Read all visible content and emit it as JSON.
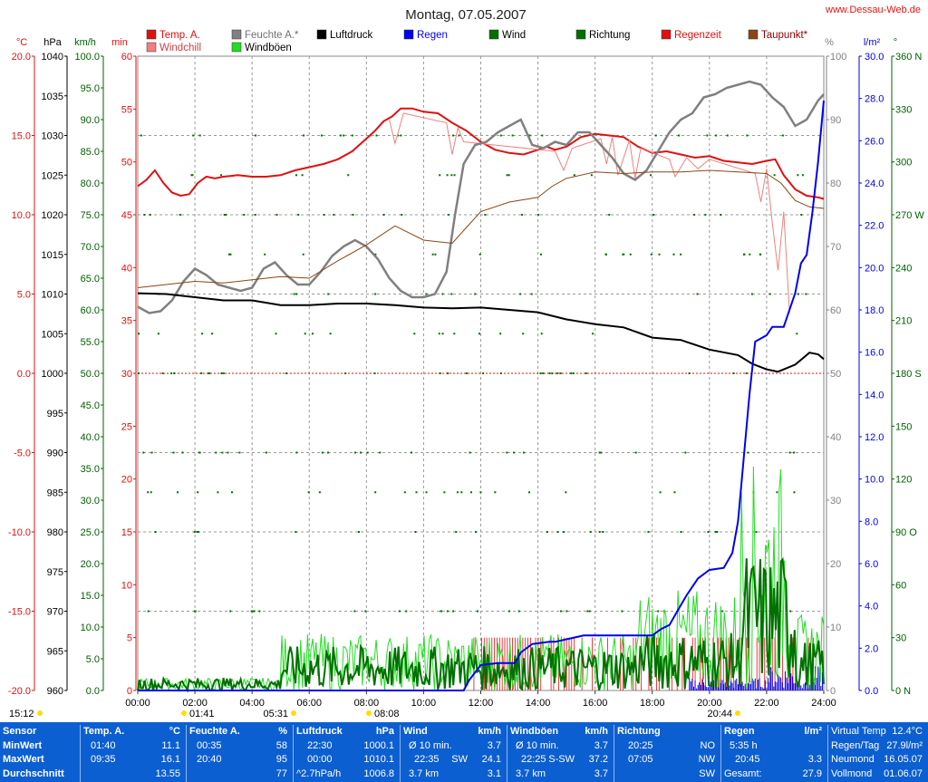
{
  "header": {
    "title": "Montag, 07.05.2007",
    "site": "www.Dessau-Web.de"
  },
  "legend": [
    {
      "label": "Temp. A.",
      "color": "#e01010"
    },
    {
      "label": "Windchill",
      "color": "#f08080"
    },
    {
      "label": "Feuchte A.*",
      "color": "#808080"
    },
    {
      "label": "Windböen",
      "color": "#22dd22"
    },
    {
      "label": "Luftdruck",
      "color": "#000000"
    },
    {
      "label": "Regen",
      "color": "#0000ee"
    },
    {
      "label": "Wind",
      "color": "#007000"
    },
    {
      "label": "Richtung",
      "color": "#007000"
    },
    {
      "label": "Regenzeit",
      "color": "#e01010"
    },
    {
      "label": "Taupunkt*",
      "color": "#8b4513"
    }
  ],
  "chart_data": {
    "type": "line",
    "x_range_h": [
      0,
      24
    ],
    "x_ticks": [
      "00:00",
      "02:00",
      "04:00",
      "06:00",
      "08:00",
      "10:00",
      "12:00",
      "14:00",
      "16:00",
      "18:00",
      "20:00",
      "22:00",
      "24:00"
    ],
    "axes": {
      "temp": {
        "unit": "°C",
        "range": [
          -20,
          20
        ],
        "ticks": [
          "20.0",
          "15.0",
          "10.0",
          "5.0",
          "0.0",
          "-5.0",
          "-10.0",
          "-15.0",
          "-20.0"
        ],
        "color": "#e01010"
      },
      "pressure": {
        "unit": "hPa",
        "range": [
          960,
          1040
        ],
        "ticks": [
          "1040",
          "1035",
          "1030",
          "1025",
          "1020",
          "1015",
          "1010",
          "1005",
          "1000",
          "995",
          "990",
          "985",
          "980",
          "975",
          "970",
          "965",
          "960"
        ],
        "color": "#000000"
      },
      "wind": {
        "unit": "km/h",
        "range": [
          0,
          100
        ],
        "ticks": [
          "100.0",
          "95.0",
          "90.0",
          "85.0",
          "80.0",
          "75.0",
          "70.0",
          "65.0",
          "60.0",
          "55.0",
          "50.0",
          "45.0",
          "40.0",
          "35.0",
          "30.0",
          "25.0",
          "20.0",
          "15.0",
          "10.0",
          "5.0",
          "0.0"
        ],
        "color": "#006000"
      },
      "minutes": {
        "unit": "min",
        "range": [
          0,
          60
        ],
        "ticks": [
          "60",
          "55",
          "50",
          "45",
          "40",
          "35",
          "30",
          "25",
          "20",
          "15",
          "10",
          "5",
          "0"
        ],
        "color": "#e01010"
      },
      "humidity": {
        "unit": "%",
        "range": [
          0,
          100
        ],
        "ticks": [
          "100",
          "90",
          "80",
          "70",
          "60",
          "50",
          "40",
          "30",
          "20",
          "10",
          "0"
        ],
        "color": "#808080"
      },
      "rain": {
        "unit": "l/m²",
        "range": [
          0,
          30
        ],
        "ticks": [
          "30.0",
          "28.0",
          "26.0",
          "24.0",
          "22.0",
          "20.0",
          "18.0",
          "16.0",
          "14.0",
          "12.0",
          "10.0",
          "8.0",
          "6.0",
          "4.0",
          "2.0",
          "0.0"
        ],
        "color": "#0000ee"
      },
      "direction": {
        "unit": "°",
        "range": [
          0,
          360
        ],
        "ticks": [
          "360 N",
          "330",
          "300",
          "270 W",
          "240",
          "210",
          "180 S",
          "150",
          "120",
          "90 O",
          "60",
          "30",
          "0 N"
        ],
        "color": "#006000"
      }
    },
    "series": [
      {
        "name": "Temp. A.",
        "axis": "temp",
        "color": "#e01010",
        "x": [
          0,
          0.3,
          0.6,
          0.9,
          1.2,
          1.5,
          1.8,
          2.1,
          2.4,
          2.7,
          3.0,
          3.5,
          4.0,
          4.5,
          5.0,
          5.5,
          6.0,
          6.5,
          7.0,
          7.5,
          8.0,
          8.3,
          8.6,
          8.9,
          9.2,
          9.6,
          10.0,
          10.5,
          11.0,
          11.5,
          12.0,
          12.5,
          13.0,
          13.5,
          14.0,
          14.3,
          14.6,
          15.0,
          15.5,
          16.0,
          16.5,
          17.0,
          17.5,
          18.0,
          18.5,
          19.0,
          19.5,
          20.0,
          20.5,
          21.0,
          21.5,
          22.0,
          22.3,
          22.6,
          23.0,
          23.4,
          23.8,
          24.0
        ],
        "values": [
          11.8,
          12.2,
          12.8,
          12.0,
          11.4,
          11.2,
          11.3,
          12.0,
          12.4,
          12.3,
          12.4,
          12.5,
          12.4,
          12.4,
          12.5,
          12.8,
          13.0,
          13.2,
          13.5,
          14.0,
          14.8,
          15.3,
          15.9,
          16.2,
          16.7,
          16.7,
          16.5,
          16.4,
          15.8,
          15.3,
          14.6,
          14.1,
          13.9,
          13.8,
          14.1,
          14.3,
          14.1,
          14.3,
          14.9,
          15.1,
          15.0,
          14.9,
          14.3,
          13.9,
          14.0,
          13.8,
          13.6,
          13.7,
          13.4,
          13.3,
          13.2,
          13.4,
          13.5,
          12.5,
          11.6,
          11.2,
          11.1,
          11.0
        ]
      },
      {
        "name": "Windchill",
        "axis": "temp",
        "color": "#f08080",
        "x": [
          8.8,
          9.0,
          9.3,
          10.8,
          11.0,
          11.2,
          11.4,
          14.6,
          14.9,
          15.2,
          16.2,
          16.4,
          16.6,
          16.8,
          17.2,
          17.4,
          17.6,
          18.6,
          18.8,
          19.2,
          19.6,
          20.0,
          21.6,
          21.8,
          22.0,
          22.2,
          22.4,
          22.6,
          22.8
        ],
        "values": [
          16.0,
          14.5,
          16.4,
          15.8,
          13.8,
          15.5,
          14.6,
          14.0,
          12.8,
          14.2,
          14.8,
          13.2,
          14.9,
          12.5,
          14.7,
          12.3,
          14.2,
          13.5,
          12.4,
          13.6,
          12.9,
          13.5,
          12.6,
          10.8,
          12.9,
          9.5,
          6.5,
          10.2,
          3.8
        ]
      },
      {
        "name": "Feuchte A.*",
        "axis": "humidity",
        "color": "#808080",
        "x": [
          0,
          0.4,
          0.8,
          1.2,
          1.6,
          2.0,
          2.4,
          2.8,
          3.2,
          3.6,
          4.0,
          4.4,
          4.8,
          5.2,
          5.6,
          6.0,
          6.4,
          6.8,
          7.2,
          7.6,
          8.0,
          8.4,
          8.8,
          9.2,
          9.6,
          10.0,
          10.4,
          10.8,
          11.1,
          11.4,
          11.8,
          12.2,
          12.6,
          13.0,
          13.4,
          13.8,
          14.2,
          14.6,
          15.0,
          15.4,
          15.8,
          16.2,
          16.6,
          17.0,
          17.4,
          17.8,
          18.2,
          18.6,
          19.0,
          19.4,
          19.8,
          20.2,
          20.6,
          21.0,
          21.4,
          21.8,
          22.2,
          22.6,
          23.0,
          23.4,
          23.8,
          24.0
        ],
        "values": [
          60.5,
          59.5,
          59.8,
          61.5,
          64.5,
          66.5,
          65.5,
          64.0,
          63.5,
          63.0,
          63.5,
          66.5,
          67.5,
          65.5,
          64.0,
          64.0,
          66.0,
          68.5,
          70.0,
          71.0,
          70.0,
          68.0,
          65.0,
          63.0,
          62.0,
          62.0,
          62.5,
          66.0,
          75.0,
          83.0,
          86.0,
          86.5,
          88.0,
          89.0,
          90.0,
          86.0,
          85.5,
          86.5,
          86.0,
          88.0,
          88.0,
          86.0,
          84.0,
          81.5,
          80.5,
          82.0,
          85.0,
          88.0,
          90.0,
          91.0,
          93.5,
          94.0,
          95.0,
          95.5,
          96.0,
          95.5,
          93.5,
          92.0,
          89.0,
          90.0,
          93.0,
          94.0
        ]
      },
      {
        "name": "Taupunkt*",
        "axis": "temp",
        "color": "#8b4513",
        "x": [
          0,
          1.0,
          2.0,
          3.0,
          4.0,
          5.0,
          6.0,
          7.0,
          8.0,
          9.0,
          10.0,
          11.0,
          11.5,
          12.0,
          13.0,
          14.0,
          14.5,
          15.0,
          16.0,
          17.0,
          18.0,
          19.0,
          20.0,
          21.0,
          22.0,
          22.5,
          23.0,
          23.5,
          24.0
        ],
        "values": [
          5.4,
          5.6,
          5.8,
          5.7,
          5.9,
          6.1,
          6.0,
          7.1,
          8.1,
          9.3,
          8.4,
          8.2,
          9.2,
          10.2,
          10.8,
          11.1,
          11.8,
          12.3,
          12.7,
          12.6,
          12.7,
          12.7,
          12.8,
          12.7,
          12.6,
          12.0,
          10.9,
          10.5,
          10.4
        ]
      },
      {
        "name": "Luftdruck",
        "axis": "pressure",
        "color": "#000000",
        "x": [
          0,
          1.0,
          2.0,
          3.0,
          4.0,
          5.0,
          6.0,
          7.0,
          8.0,
          9.0,
          10.0,
          11.0,
          12.0,
          13.0,
          14.0,
          15.0,
          16.0,
          17.0,
          18.0,
          19.0,
          20.0,
          21.0,
          21.5,
          22.0,
          22.4,
          23.0,
          23.5,
          23.8,
          24.0
        ],
        "values": [
          1010.1,
          1010.0,
          1009.6,
          1009.2,
          1009.2,
          1008.6,
          1008.6,
          1008.8,
          1008.8,
          1008.6,
          1008.3,
          1008.2,
          1008.3,
          1008.0,
          1007.7,
          1006.8,
          1006.2,
          1005.8,
          1004.5,
          1004.2,
          1003.0,
          1002.3,
          1001.2,
          1000.5,
          1000.2,
          1001.1,
          1002.6,
          1002.4,
          1001.8
        ]
      },
      {
        "name": "Regen",
        "axis": "rain",
        "color": "#0000ee",
        "x": [
          0,
          11.4,
          11.6,
          12.0,
          12.6,
          13.2,
          13.4,
          13.8,
          14.4,
          14.6,
          15.6,
          16.6,
          17.6,
          18.0,
          18.3,
          18.6,
          18.9,
          19.2,
          19.6,
          20.0,
          20.5,
          20.8,
          21.0,
          21.2,
          21.4,
          21.6,
          22.0,
          22.2,
          22.3,
          22.6,
          23.0,
          23.2,
          23.4,
          23.6,
          23.8,
          24.0
        ],
        "values": [
          0,
          0,
          0.5,
          1.2,
          1.3,
          1.3,
          1.8,
          2.2,
          2.3,
          2.3,
          2.6,
          2.6,
          2.6,
          2.6,
          2.9,
          3.1,
          3.8,
          4.5,
          5.3,
          5.7,
          5.8,
          6.5,
          8.0,
          11.0,
          14.0,
          16.5,
          16.8,
          17.2,
          17.2,
          17.2,
          18.8,
          20.2,
          20.6,
          22.6,
          25.0,
          27.9
        ]
      }
    ]
  },
  "footer_times": [
    {
      "label": "15:12"
    },
    {
      "label": "01:41"
    },
    {
      "label": "05:31"
    },
    {
      "label": "08:08"
    },
    {
      "label": "20:44"
    }
  ],
  "stats": {
    "sensor": {
      "title": "Sensor",
      "rows": [
        "MinWert",
        "MaxWert",
        "Durchschnitt"
      ]
    },
    "temp": {
      "title": "Temp. A.",
      "unit": "°C",
      "rows": [
        {
          "t": "01:40",
          "v": "11.1"
        },
        {
          "t": "09:35",
          "v": "16.1"
        },
        {
          "t": "",
          "v": "13.55"
        }
      ]
    },
    "hum": {
      "title": "Feuchte A.",
      "unit": "%",
      "rows": [
        {
          "t": "00:35",
          "v": "58"
        },
        {
          "t": "20:40",
          "v": "95"
        },
        {
          "t": "",
          "v": "77"
        }
      ]
    },
    "press": {
      "title": "Luftdruck",
      "unit": "hPa",
      "rows": [
        {
          "t": "22:30",
          "v": "1000.1"
        },
        {
          "t": "00:00",
          "v": "1010.1"
        },
        {
          "t": "^2.7hPa/h",
          "v": "1006.8"
        }
      ]
    },
    "wind": {
      "title": "Wind",
      "unit": "km/h",
      "rows": [
        {
          "t": "Ø 10 min.",
          "m": "",
          "v": "3.7"
        },
        {
          "t": "22:35",
          "m": "SW",
          "v": "24.1"
        },
        {
          "t": "3.7 km",
          "m": "",
          "v": "3.1"
        }
      ]
    },
    "gust": {
      "title": "Windböen",
      "unit": "km/h",
      "rows": [
        {
          "t": "Ø 10 min.",
          "m": "",
          "v": "3.7"
        },
        {
          "t": "22:25",
          "m": "S-SW",
          "v": "37.2"
        },
        {
          "t": "3.7 km",
          "m": "",
          "v": "3.7"
        }
      ]
    },
    "dir": {
      "title": "Richtung",
      "unit": "",
      "rows": [
        {
          "t": "20:25",
          "v": "NO"
        },
        {
          "t": "07:05",
          "v": "NW"
        },
        {
          "t": "",
          "v": "SW"
        }
      ]
    },
    "rain": {
      "title": "Regen",
      "unit": "l/m²",
      "rows": [
        {
          "t": "5:35 h",
          "v": ""
        },
        {
          "t": "20:45",
          "v": "3.3"
        },
        {
          "t": "Gesamt:",
          "v": "27.9"
        }
      ]
    },
    "misc": {
      "rows": [
        {
          "l": "Virtual Temp",
          "v": "12.4°C"
        },
        {
          "l": "Regen/Tag",
          "v": "27.9l/m²"
        },
        {
          "l": "Neumond",
          "v": "16.05.07"
        },
        {
          "l": "Vollmond",
          "v": "01.06.07"
        }
      ]
    }
  }
}
